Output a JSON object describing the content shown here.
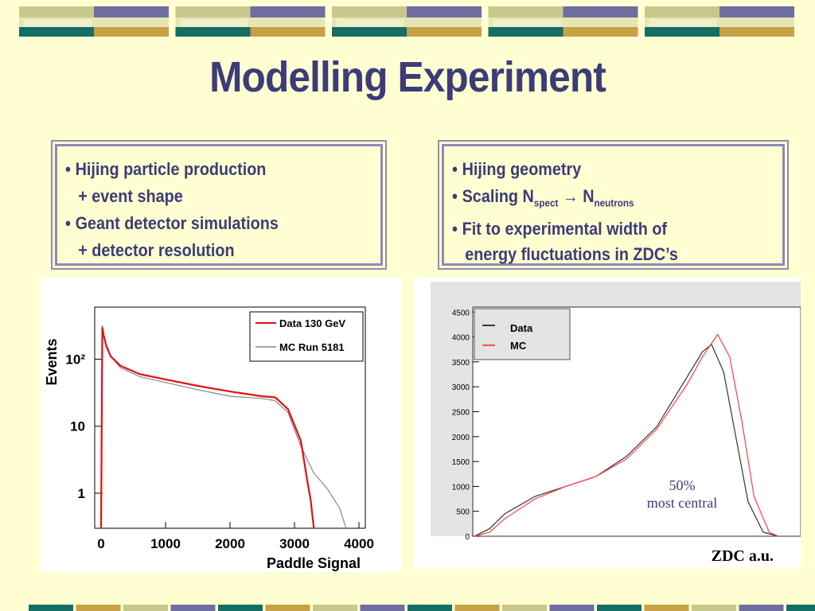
{
  "title": "Modelling Experiment",
  "left_box": {
    "items": [
      {
        "text": "Hijing particle production",
        "cont": "+ event shape"
      },
      {
        "text": "Geant detector simulations",
        "cont": "+ detector resolution"
      }
    ]
  },
  "right_box": {
    "item1": "Hijing geometry",
    "item2_prefix": "Scaling N",
    "item2_sub1": "spect",
    "item2_arrow": "→",
    "item2_mid": " N",
    "item2_sub2": "neutrons",
    "item3": "Fit to experimental width of",
    "item3_cont": "energy fluctuations in ZDC’s"
  },
  "chart_data": [
    {
      "type": "line",
      "xlabel": "Paddle Signal",
      "ylabel": "Events",
      "x_ticks": [
        "0",
        "1000",
        "2000",
        "3000",
        "4000"
      ],
      "y_ticks": [
        "1",
        "10",
        "10²"
      ],
      "xlim": [
        0,
        4000
      ],
      "log_y": true,
      "legend": [
        "Data 130 GeV",
        "MC Run 5181"
      ],
      "legend_placement": "top-right",
      "series": [
        {
          "name": "Data 130 GeV",
          "color": "#e01010",
          "x": [
            0,
            20,
            40,
            80,
            150,
            300,
            600,
            1000,
            1500,
            2000,
            2500,
            2700,
            2900,
            3100,
            3200,
            3250,
            3300
          ],
          "y": [
            0.3,
            300,
            230,
            160,
            110,
            80,
            60,
            50,
            40,
            33,
            28,
            27,
            18,
            6,
            1.5,
            0.8,
            0.3
          ]
        },
        {
          "name": "MC Run 5181",
          "color": "#888888",
          "x": [
            0,
            20,
            40,
            80,
            150,
            300,
            600,
            1000,
            1500,
            2000,
            2500,
            2700,
            2900,
            3100,
            3300,
            3500,
            3700,
            3800
          ],
          "y": [
            0.3,
            320,
            240,
            150,
            110,
            75,
            55,
            45,
            35,
            28,
            26,
            24,
            16,
            5,
            2,
            1.2,
            0.6,
            0.3
          ]
        }
      ]
    },
    {
      "type": "line",
      "xlabel": "ZDC a.u.",
      "y_ticks": [
        "0",
        "500",
        "1000",
        "1500",
        "2000",
        "2500",
        "3000",
        "3500",
        "4000",
        "4500"
      ],
      "ylim": [
        0,
        4500
      ],
      "legend": [
        "Data",
        "MC"
      ],
      "legend_placement": "top-left",
      "annotation_line1": "50%",
      "annotation_line2": "most central",
      "series": [
        {
          "name": "Data",
          "color": "#333333",
          "x": [
            0,
            5,
            10,
            20,
            30,
            40,
            50,
            60,
            70,
            75,
            78,
            82,
            86,
            90,
            95,
            100
          ],
          "y": [
            0,
            150,
            450,
            800,
            1000,
            1200,
            1600,
            2200,
            3200,
            3700,
            3850,
            3300,
            2000,
            700,
            80,
            0
          ]
        },
        {
          "name": "MC",
          "color": "#ff4040",
          "x": [
            0,
            5,
            10,
            20,
            30,
            40,
            50,
            60,
            70,
            75,
            80,
            84,
            88,
            92,
            97,
            100
          ],
          "y": [
            0,
            80,
            350,
            750,
            1000,
            1200,
            1550,
            2150,
            3050,
            3600,
            4050,
            3600,
            2300,
            800,
            80,
            0
          ]
        }
      ]
    }
  ],
  "colors": {
    "band_yellow": "#c8c88c",
    "band_blue": "#6e6ea0",
    "band_teal": "#146e64",
    "band_gold": "#c8a046",
    "title": "#3c3c78"
  }
}
